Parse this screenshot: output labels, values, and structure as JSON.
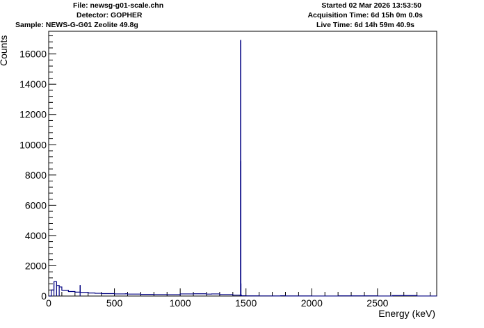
{
  "header": {
    "file": "File: newsg-g01-scale.chn",
    "detector": "Detector: GOPHER",
    "sample": "Sample: NEWS-G-G01 Zeolite 49.8g",
    "started": "Started 02 Mar 2026 13:53:50",
    "acquisition": "Acquisition Time: 6d 15h 0m 0.0s",
    "live": "Live Time: 6d 14h 59m 40.9s"
  },
  "chart_data": {
    "type": "line",
    "title": "",
    "xlabel": "Energy (keV)",
    "ylabel": "Counts",
    "xlim": [
      0,
      2950
    ],
    "ylim": [
      0,
      17500
    ],
    "x_ticks": [
      0,
      500,
      1000,
      1500,
      2000,
      2500
    ],
    "x_tick_labels": [
      "0",
      "500",
      "1000",
      "1500",
      "2000",
      "2500"
    ],
    "y_ticks": [
      0,
      2000,
      4000,
      6000,
      8000,
      10000,
      12000,
      14000,
      16000
    ],
    "y_tick_labels": [
      "0",
      "2000",
      "4000",
      "6000",
      "8000",
      "10000",
      "12000",
      "14000",
      "16000"
    ],
    "grid": false,
    "color": "#000080",
    "series": [
      {
        "x": [
          0,
          20,
          40,
          60,
          80,
          100,
          150,
          200,
          238,
          239,
          240,
          241,
          300,
          352,
          400,
          500,
          583,
          600,
          700,
          800,
          900,
          1000,
          1100,
          1200,
          1238,
          1300,
          1400,
          1455,
          1459,
          1460,
          1461,
          1462,
          1466,
          1500,
          1600,
          1700,
          1764,
          1800,
          2000,
          2200,
          2204,
          2500,
          2614,
          2800,
          2950
        ],
        "y": [
          0,
          400,
          950,
          700,
          600,
          380,
          300,
          260,
          250,
          700,
          250,
          240,
          200,
          180,
          160,
          140,
          150,
          130,
          110,
          100,
          95,
          140,
          150,
          130,
          140,
          100,
          60,
          40,
          16900,
          8900,
          800,
          50,
          20,
          10,
          8,
          6,
          20,
          5,
          4,
          3,
          10,
          3,
          30,
          2,
          1
        ]
      }
    ]
  }
}
